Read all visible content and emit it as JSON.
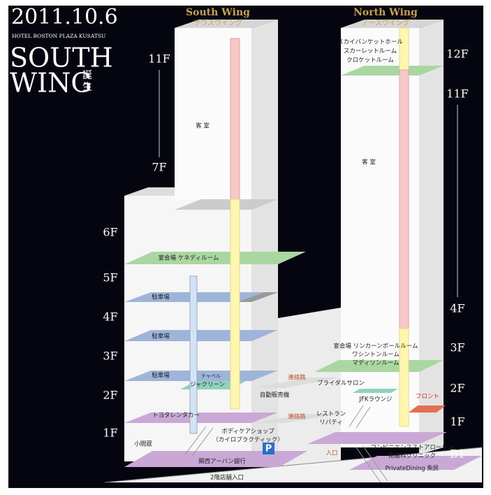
{
  "header": {
    "date": "2011.10.6",
    "hotel": "HOTEL BOSTON PLAZA KUSATSU",
    "title_line1": "SOUTH",
    "title_line2": "WING",
    "title_suffix_1": "誕",
    "title_suffix_2": "生"
  },
  "wings": [
    {
      "name": "South Wing",
      "kana": "サウスウイング"
    },
    {
      "name": "North Wing",
      "kana": "ノースウイング"
    }
  ],
  "south_floors": [
    "11F",
    "7F",
    "6F",
    "5F",
    "4F",
    "3F",
    "2F",
    "1F"
  ],
  "north_floors": [
    "12F",
    "11F",
    "4F",
    "3F",
    "2F",
    "1F",
    "B1"
  ],
  "labels": [
    "客 室",
    "客 室",
    "宴会場 ケネディルーム",
    "駐車場",
    "駐車場",
    "駐車場",
    "チャペル",
    "ジャクリーン",
    "トヨタレンタカー",
    "自動販売機",
    "連絡路",
    "連絡路",
    "ブライダルサロン",
    "JFKラウンジ",
    "フロント",
    "レストラン",
    "リバティ",
    "ボディケアショップ",
    "（カイロプラクティック）",
    "小間蔵",
    "関西アーバン銀行",
    "2階店舗入口",
    "入口",
    "コンビニエンスストアローソン",
    "南歯科クリニック",
    "PrivateDining 魚民",
    "スカイバンケットホール",
    "スカーレットルーム",
    "クロケットルーム",
    "宴会場 リンカーンボールルーム",
    "ワシントンルーム",
    "マディソンルーム"
  ],
  "parking_sign": "P"
}
